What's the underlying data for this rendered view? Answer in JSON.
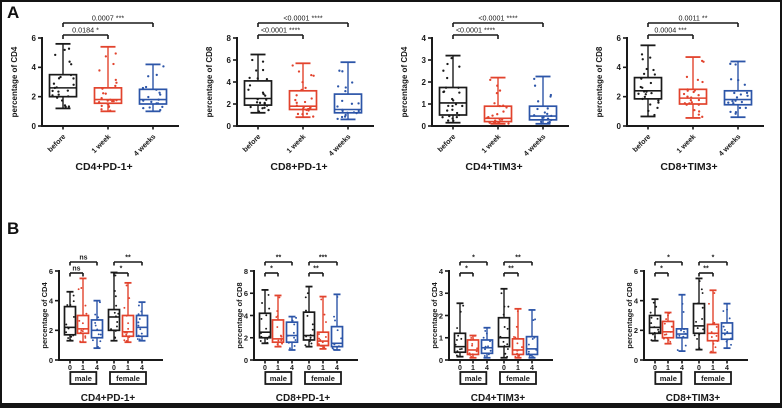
{
  "figure": {
    "panel_a_label": "A",
    "panel_b_label": "B"
  },
  "colors": {
    "black": "#1a1a1a",
    "red": "#e2432d",
    "blue": "#2c55a8",
    "frame": "#141414",
    "background": "#ffffff"
  },
  "chart_data": [
    {
      "id": "a-cd4-pd1",
      "panel": "A",
      "type": "box",
      "title": "CD4+PD-1+",
      "ylabel": "percentage of CD4",
      "ylim": [
        0,
        6
      ],
      "yticks": [
        0,
        2,
        4,
        6
      ],
      "categories": [
        "before",
        "1 week",
        "4 weeks"
      ],
      "boxes": [
        {
          "category": "before",
          "color_key": "black",
          "whislo": 1.2,
          "q1": 2.0,
          "med": 2.6,
          "q3": 3.5,
          "whishi": 5.6,
          "n": 24
        },
        {
          "category": "1 week",
          "color_key": "red",
          "whislo": 1.0,
          "q1": 1.55,
          "med": 1.8,
          "q3": 2.6,
          "whishi": 5.4,
          "n": 24
        },
        {
          "category": "4 weeks",
          "color_key": "blue",
          "whislo": 1.0,
          "q1": 1.5,
          "med": 1.8,
          "q3": 2.5,
          "whishi": 4.2,
          "n": 18
        }
      ],
      "significance": [
        {
          "from": 0,
          "to": 1,
          "p": "0.0184",
          "stars": "*",
          "level": 0
        },
        {
          "from": 0,
          "to": 2,
          "p": "0.0007",
          "stars": "***",
          "level": 1
        }
      ]
    },
    {
      "id": "a-cd8-pd1",
      "panel": "A",
      "type": "box",
      "title": "CD8+PD-1+",
      "ylabel": "percentage of CD8",
      "ylim": [
        0,
        8
      ],
      "yticks": [
        0,
        2,
        4,
        6,
        8
      ],
      "categories": [
        "before",
        "1 week",
        "4 weeks"
      ],
      "boxes": [
        {
          "category": "before",
          "color_key": "black",
          "whislo": 1.2,
          "q1": 1.9,
          "med": 2.5,
          "q3": 4.1,
          "whishi": 6.5,
          "n": 24
        },
        {
          "category": "1 week",
          "color_key": "red",
          "whislo": 0.8,
          "q1": 1.5,
          "med": 1.8,
          "q3": 3.2,
          "whishi": 5.7,
          "n": 24
        },
        {
          "category": "4 weeks",
          "color_key": "blue",
          "whislo": 0.6,
          "q1": 1.2,
          "med": 1.5,
          "q3": 2.9,
          "whishi": 5.8,
          "n": 20
        }
      ],
      "significance": [
        {
          "from": 0,
          "to": 1,
          "p": "<0.0001",
          "stars": "****",
          "level": 0
        },
        {
          "from": 0,
          "to": 2,
          "p": "<0.0001",
          "stars": "****",
          "level": 1
        }
      ]
    },
    {
      "id": "a-cd4-tim3",
      "panel": "A",
      "type": "box",
      "title": "CD4+TIM3+",
      "ylabel": "percentage of CD4",
      "ylim": [
        0,
        4
      ],
      "yticks": [
        0,
        1,
        2,
        3,
        4
      ],
      "categories": [
        "before",
        "1 week",
        "4 weeks"
      ],
      "boxes": [
        {
          "category": "before",
          "color_key": "black",
          "whislo": 0.15,
          "q1": 0.5,
          "med": 1.05,
          "q3": 1.75,
          "whishi": 3.2,
          "n": 26
        },
        {
          "category": "1 week",
          "color_key": "red",
          "whislo": 0.1,
          "q1": 0.2,
          "med": 0.35,
          "q3": 0.9,
          "whishi": 2.2,
          "n": 24
        },
        {
          "category": "4 weeks",
          "color_key": "blue",
          "whislo": 0.1,
          "q1": 0.28,
          "med": 0.45,
          "q3": 0.9,
          "whishi": 2.25,
          "n": 20
        }
      ],
      "significance": [
        {
          "from": 0,
          "to": 1,
          "p": "<0.0001",
          "stars": "****",
          "level": 0
        },
        {
          "from": 0,
          "to": 2,
          "p": "<0.0001",
          "stars": "****",
          "level": 1
        }
      ]
    },
    {
      "id": "a-cd8-tim3",
      "panel": "A",
      "type": "box",
      "title": "CD8+TIM3+",
      "ylabel": "percentage of CD8",
      "ylim": [
        0,
        6
      ],
      "yticks": [
        0,
        2,
        4,
        6
      ],
      "categories": [
        "before",
        "1 week",
        "4 weeks"
      ],
      "boxes": [
        {
          "category": "before",
          "color_key": "black",
          "whislo": 0.65,
          "q1": 1.85,
          "med": 2.4,
          "q3": 3.3,
          "whishi": 5.5,
          "n": 24
        },
        {
          "category": "1 week",
          "color_key": "red",
          "whislo": 0.55,
          "q1": 1.5,
          "med": 1.9,
          "q3": 2.5,
          "whishi": 4.7,
          "n": 24
        },
        {
          "category": "4 weeks",
          "color_key": "blue",
          "whislo": 0.6,
          "q1": 1.45,
          "med": 1.8,
          "q3": 2.4,
          "whishi": 4.4,
          "n": 20
        }
      ],
      "significance": [
        {
          "from": 0,
          "to": 1,
          "p": "0.0004",
          "stars": "***",
          "level": 0
        },
        {
          "from": 0,
          "to": 2,
          "p": "0.0011",
          "stars": "**",
          "level": 1
        }
      ]
    },
    {
      "id": "b-cd4-pd1",
      "panel": "B",
      "type": "box",
      "title": "CD4+PD-1+",
      "ylabel": "percentage of CD4",
      "ylim": [
        0,
        6
      ],
      "yticks": [
        0,
        2,
        4,
        6
      ],
      "categories": [
        "0",
        "1",
        "4",
        "0",
        "1",
        "4"
      ],
      "groups": [
        {
          "label": "male",
          "indices": [
            0,
            1,
            2
          ]
        },
        {
          "label": "female",
          "indices": [
            3,
            4,
            5
          ]
        }
      ],
      "boxes": [
        {
          "category": "0",
          "color_key": "black",
          "whislo": 1.3,
          "q1": 1.7,
          "med": 2.2,
          "q3": 3.6,
          "whishi": 4.6,
          "n": 13
        },
        {
          "category": "1",
          "color_key": "red",
          "whislo": 1.2,
          "q1": 1.8,
          "med": 2.1,
          "q3": 3.0,
          "whishi": 5.5,
          "n": 13
        },
        {
          "category": "4",
          "color_key": "blue",
          "whislo": 0.8,
          "q1": 1.5,
          "med": 2.0,
          "q3": 2.7,
          "whishi": 4.0,
          "n": 11
        },
        {
          "category": "0",
          "color_key": "black",
          "whislo": 1.3,
          "q1": 2.0,
          "med": 2.9,
          "q3": 3.4,
          "whishi": 5.9,
          "n": 13
        },
        {
          "category": "1",
          "color_key": "red",
          "whislo": 1.2,
          "q1": 1.6,
          "med": 1.9,
          "q3": 3.0,
          "whishi": 5.2,
          "n": 13
        },
        {
          "category": "4",
          "color_key": "blue",
          "whislo": 1.3,
          "q1": 1.6,
          "med": 2.2,
          "q3": 3.0,
          "whishi": 3.9,
          "n": 11
        }
      ],
      "significance": [
        {
          "from": 0,
          "to": 1,
          "stars": "ns",
          "level": 0
        },
        {
          "from": 0,
          "to": 2,
          "stars": "ns",
          "level": 1
        },
        {
          "from": 3,
          "to": 4,
          "stars": "*",
          "level": 0
        },
        {
          "from": 3,
          "to": 5,
          "stars": "**",
          "level": 1
        }
      ]
    },
    {
      "id": "b-cd8-pd1",
      "panel": "B",
      "type": "box",
      "title": "CD8+PD-1+",
      "ylabel": "percentage of CD8",
      "ylim": [
        0,
        8
      ],
      "yticks": [
        0,
        2,
        4,
        6,
        8
      ],
      "categories": [
        "0",
        "1",
        "4",
        "0",
        "1",
        "4"
      ],
      "groups": [
        {
          "label": "male",
          "indices": [
            0,
            1,
            2
          ]
        },
        {
          "label": "female",
          "indices": [
            3,
            4,
            5
          ]
        }
      ],
      "boxes": [
        {
          "category": "0",
          "color_key": "black",
          "whislo": 1.5,
          "q1": 2.0,
          "med": 2.5,
          "q3": 4.2,
          "whishi": 6.3,
          "n": 13
        },
        {
          "category": "1",
          "color_key": "red",
          "whislo": 1.2,
          "q1": 1.6,
          "med": 1.9,
          "q3": 3.6,
          "whishi": 5.8,
          "n": 13
        },
        {
          "category": "4",
          "color_key": "blue",
          "whislo": 0.9,
          "q1": 1.6,
          "med": 2.2,
          "q3": 3.4,
          "whishi": 3.9,
          "n": 11
        },
        {
          "category": "0",
          "color_key": "black",
          "whislo": 1.2,
          "q1": 1.8,
          "med": 2.2,
          "q3": 4.3,
          "whishi": 6.6,
          "n": 13
        },
        {
          "category": "1",
          "color_key": "red",
          "whislo": 1.0,
          "q1": 1.3,
          "med": 1.7,
          "q3": 2.5,
          "whishi": 5.7,
          "n": 13
        },
        {
          "category": "4",
          "color_key": "blue",
          "whislo": 0.9,
          "q1": 1.2,
          "med": 1.5,
          "q3": 3.0,
          "whishi": 5.9,
          "n": 11
        }
      ],
      "significance": [
        {
          "from": 0,
          "to": 1,
          "stars": "*",
          "level": 0
        },
        {
          "from": 0,
          "to": 2,
          "stars": "**",
          "level": 1
        },
        {
          "from": 3,
          "to": 4,
          "stars": "**",
          "level": 0
        },
        {
          "from": 3,
          "to": 5,
          "stars": "***",
          "level": 1
        }
      ]
    },
    {
      "id": "b-cd4-tim3",
      "panel": "B",
      "type": "box",
      "title": "CD4+TIM3+",
      "ylabel": "percentage of CD4",
      "ylim": [
        0,
        4
      ],
      "yticks": [
        0,
        1,
        2,
        3,
        4
      ],
      "categories": [
        "0",
        "1",
        "4",
        "0",
        "1",
        "4"
      ],
      "groups": [
        {
          "label": "male",
          "indices": [
            0,
            1,
            2
          ]
        },
        {
          "label": "female",
          "indices": [
            3,
            4,
            5
          ]
        }
      ],
      "boxes": [
        {
          "category": "0",
          "color_key": "black",
          "whislo": 0.15,
          "q1": 0.35,
          "med": 0.6,
          "q3": 1.2,
          "whishi": 2.55,
          "n": 13
        },
        {
          "category": "1",
          "color_key": "red",
          "whislo": 0.1,
          "q1": 0.25,
          "med": 0.45,
          "q3": 0.9,
          "whishi": 1.1,
          "n": 13
        },
        {
          "category": "4",
          "color_key": "blue",
          "whislo": 0.1,
          "q1": 0.3,
          "med": 0.55,
          "q3": 0.9,
          "whishi": 1.45,
          "n": 11
        },
        {
          "category": "0",
          "color_key": "black",
          "whislo": 0.1,
          "q1": 0.6,
          "med": 1.0,
          "q3": 1.9,
          "whishi": 3.2,
          "n": 13
        },
        {
          "category": "1",
          "color_key": "red",
          "whislo": 0.1,
          "q1": 0.25,
          "med": 0.45,
          "q3": 0.95,
          "whishi": 2.3,
          "n": 13
        },
        {
          "category": "4",
          "color_key": "blue",
          "whislo": 0.1,
          "q1": 0.25,
          "med": 0.5,
          "q3": 1.05,
          "whishi": 2.25,
          "n": 11
        }
      ],
      "significance": [
        {
          "from": 0,
          "to": 1,
          "stars": "*",
          "level": 0
        },
        {
          "from": 0,
          "to": 2,
          "stars": "*",
          "level": 1
        },
        {
          "from": 3,
          "to": 4,
          "stars": "**",
          "level": 0
        },
        {
          "from": 3,
          "to": 5,
          "stars": "**",
          "level": 1
        }
      ]
    },
    {
      "id": "b-cd8-tim3",
      "panel": "B",
      "type": "box",
      "title": "CD8+TIM3+",
      "ylabel": "percentage of CD8",
      "ylim": [
        0,
        6
      ],
      "yticks": [
        0,
        2,
        4,
        6
      ],
      "categories": [
        "0",
        "1",
        "4",
        "0",
        "1",
        "4"
      ],
      "groups": [
        {
          "label": "male",
          "indices": [
            0,
            1,
            2
          ]
        },
        {
          "label": "female",
          "indices": [
            3,
            4,
            5
          ]
        }
      ],
      "boxes": [
        {
          "category": "0",
          "color_key": "black",
          "whislo": 1.3,
          "q1": 1.8,
          "med": 2.2,
          "q3": 3.0,
          "whishi": 4.1,
          "n": 13
        },
        {
          "category": "1",
          "color_key": "red",
          "whislo": 1.1,
          "q1": 1.5,
          "med": 1.9,
          "q3": 2.6,
          "whishi": 3.2,
          "n": 13
        },
        {
          "category": "4",
          "color_key": "blue",
          "whislo": 0.6,
          "q1": 1.5,
          "med": 1.75,
          "q3": 2.1,
          "whishi": 4.4,
          "n": 11
        },
        {
          "category": "0",
          "color_key": "black",
          "whislo": 0.7,
          "q1": 1.8,
          "med": 2.3,
          "q3": 3.8,
          "whishi": 5.5,
          "n": 13
        },
        {
          "category": "1",
          "color_key": "red",
          "whislo": 0.5,
          "q1": 1.3,
          "med": 1.8,
          "q3": 2.4,
          "whishi": 4.7,
          "n": 13
        },
        {
          "category": "4",
          "color_key": "blue",
          "whislo": 0.8,
          "q1": 1.4,
          "med": 1.8,
          "q3": 2.5,
          "whishi": 3.8,
          "n": 11
        }
      ],
      "significance": [
        {
          "from": 0,
          "to": 1,
          "stars": "*",
          "level": 0
        },
        {
          "from": 0,
          "to": 2,
          "stars": "*",
          "level": 1
        },
        {
          "from": 3,
          "to": 4,
          "stars": "**",
          "level": 0
        },
        {
          "from": 3,
          "to": 5,
          "stars": "*",
          "level": 1
        }
      ]
    }
  ]
}
